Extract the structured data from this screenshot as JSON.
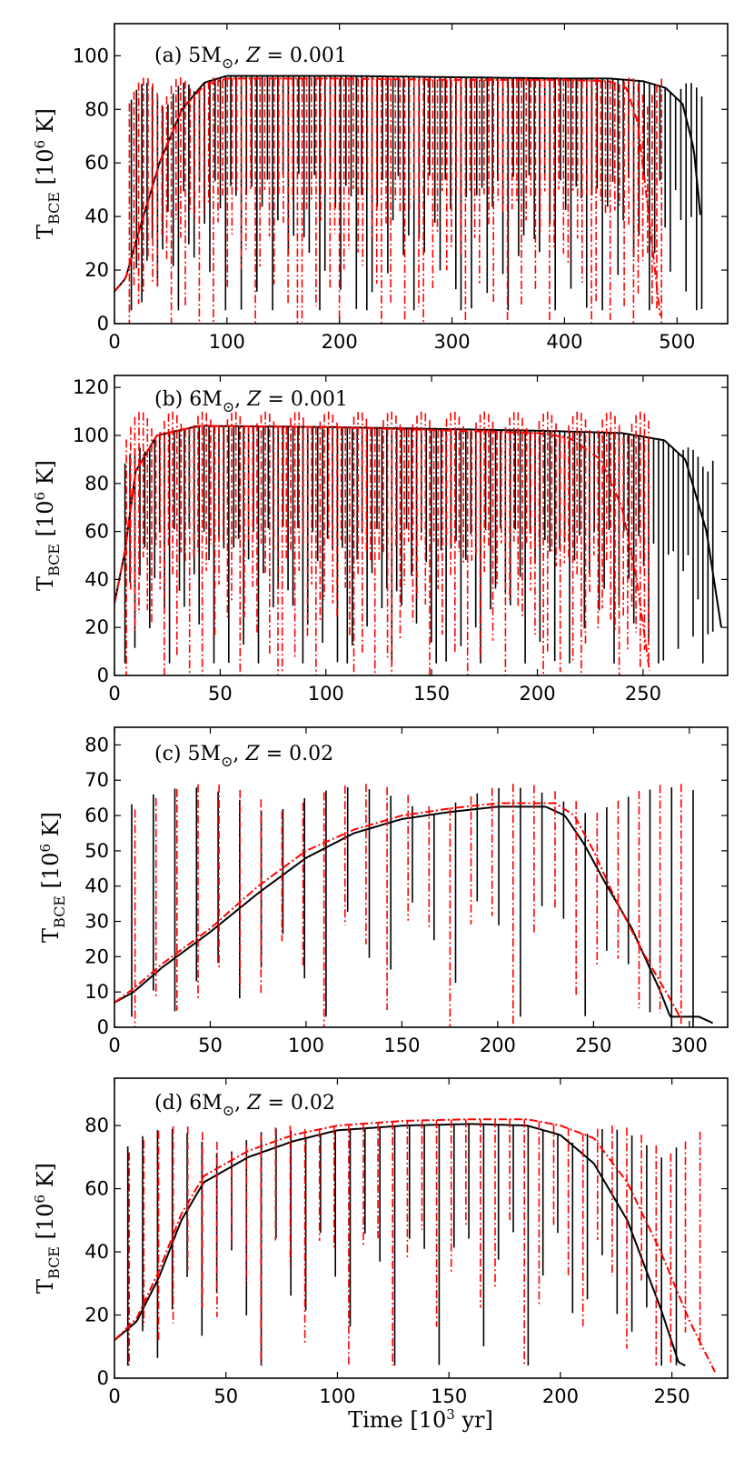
{
  "figure": {
    "xlabel": "Time [10",
    "xlabel_sup": "3",
    "xlabel_tail": " yr]"
  },
  "legend_colors": {
    "series_1": "#000000",
    "series_2": "#ff0000"
  },
  "chart_data": [
    {
      "type": "line",
      "title_prefix": "(a) 5M",
      "title_sun": "⊙",
      "title_sep": ", ",
      "title_z": "Z",
      "title_value": " = 0.001",
      "ylabel": "T",
      "ylabel_sub": "BCE",
      "ylabel_unit": " [10",
      "ylabel_unit_sup": "6",
      "ylabel_unit_tail": " K]",
      "xlim": [
        0,
        545
      ],
      "ylim": [
        0,
        112
      ],
      "xticks": [
        0,
        100,
        200,
        300,
        400,
        500
      ],
      "yticks": [
        0,
        20,
        40,
        60,
        80,
        100
      ],
      "series": [
        {
          "name": "black",
          "style": "solid",
          "pulses": 110,
          "t_start": 15,
          "t_end": 522,
          "peak": 92.5,
          "spike_top": 90,
          "dip_min": 5,
          "envelope": [
            [
              0,
              12
            ],
            [
              10,
              17
            ],
            [
              20,
              32
            ],
            [
              40,
              60
            ],
            [
              60,
              80
            ],
            [
              80,
              90
            ],
            [
              100,
              92.5
            ],
            [
              200,
              92.5
            ],
            [
              300,
              92
            ],
            [
              400,
              91.5
            ],
            [
              440,
              91.5
            ],
            [
              470,
              90.5
            ],
            [
              490,
              88
            ],
            [
              505,
              82
            ],
            [
              515,
              65
            ],
            [
              522,
              35
            ]
          ]
        },
        {
          "name": "red",
          "style": "dashdot",
          "pulses": 115,
          "t_start": 12,
          "t_end": 485,
          "peak": 91.5,
          "spike_top": 92,
          "dip_min": 0,
          "envelope": [
            [
              0,
              12
            ],
            [
              10,
              17
            ],
            [
              20,
              32
            ],
            [
              40,
              60
            ],
            [
              60,
              80
            ],
            [
              80,
              89
            ],
            [
              100,
              91.5
            ],
            [
              200,
              91.5
            ],
            [
              300,
              91
            ],
            [
              400,
              91
            ],
            [
              440,
              90.5
            ],
            [
              455,
              88
            ],
            [
              465,
              75
            ],
            [
              475,
              40
            ],
            [
              485,
              3
            ]
          ]
        }
      ]
    },
    {
      "type": "line",
      "title_prefix": "(b) 6M",
      "title_sun": "⊙",
      "title_sep": ", ",
      "title_z": "Z",
      "title_value": " = 0.001",
      "ylabel": "T",
      "ylabel_sub": "BCE",
      "ylabel_unit": " [10",
      "ylabel_unit_sup": "6",
      "ylabel_unit_tail": " K]",
      "xlim": [
        0,
        290
      ],
      "ylim": [
        0,
        125
      ],
      "xticks": [
        0,
        50,
        100,
        150,
        200,
        250
      ],
      "yticks": [
        0,
        20,
        40,
        60,
        80,
        100,
        120
      ],
      "series": [
        {
          "name": "black",
          "style": "solid",
          "pulses": 120,
          "t_start": 5,
          "t_end": 283,
          "peak": 104,
          "spike_top": 95,
          "dip_min": 5,
          "envelope": [
            [
              0,
              30
            ],
            [
              5,
              52
            ],
            [
              10,
              85
            ],
            [
              20,
              100
            ],
            [
              40,
              104
            ],
            [
              100,
              103.5
            ],
            [
              200,
              102
            ],
            [
              240,
              101
            ],
            [
              260,
              98
            ],
            [
              270,
              90
            ],
            [
              280,
              60
            ],
            [
              287,
              20
            ]
          ]
        },
        {
          "name": "red",
          "style": "dashdot",
          "pulses": 125,
          "t_start": 5,
          "t_end": 252,
          "peak": 104,
          "spike_top": 110,
          "dip_min": 0,
          "envelope": [
            [
              0,
              30
            ],
            [
              5,
              52
            ],
            [
              10,
              85
            ],
            [
              20,
              100
            ],
            [
              40,
              104
            ],
            [
              100,
              103.5
            ],
            [
              200,
              101
            ],
            [
              215,
              99
            ],
            [
              230,
              90
            ],
            [
              240,
              70
            ],
            [
              247,
              40
            ],
            [
              253,
              2
            ]
          ]
        }
      ]
    },
    {
      "type": "line",
      "title_prefix": "(c) 5M",
      "title_sun": "⊙",
      "title_sep": ", ",
      "title_z": "Z",
      "title_value": " = 0.02",
      "ylabel": "T",
      "ylabel_sub": "BCE",
      "ylabel_unit": " [10",
      "ylabel_unit_sup": "6",
      "ylabel_unit_tail": " K]",
      "xlim": [
        0,
        320
      ],
      "ylim": [
        0,
        85
      ],
      "xticks": [
        0,
        50,
        100,
        150,
        200,
        250,
        300
      ],
      "yticks": [
        0,
        10,
        20,
        30,
        40,
        50,
        60,
        70,
        80
      ],
      "series": [
        {
          "name": "black",
          "style": "solid",
          "pulses": 27,
          "t_start": 9,
          "t_end": 302,
          "peak": 63,
          "spike_top": 68,
          "dip_min": 3,
          "envelope": [
            [
              0,
              7
            ],
            [
              10,
              10
            ],
            [
              25,
              17
            ],
            [
              50,
              27
            ],
            [
              75,
              38
            ],
            [
              100,
              48
            ],
            [
              125,
              55
            ],
            [
              150,
              59
            ],
            [
              175,
              61
            ],
            [
              200,
              62.5
            ],
            [
              225,
              62.5
            ],
            [
              235,
              60
            ],
            [
              245,
              52
            ],
            [
              255,
              42
            ],
            [
              270,
              28
            ],
            [
              285,
              10
            ],
            [
              290,
              3
            ],
            [
              298,
              3
            ],
            [
              305,
              3
            ],
            [
              313,
              1
            ]
          ]
        },
        {
          "name": "red",
          "style": "dashdot",
          "pulses": 27,
          "t_start": 10,
          "t_end": 295,
          "peak": 63.5,
          "spike_top": 69,
          "dip_min": 0,
          "envelope": [
            [
              0,
              7
            ],
            [
              10,
              11
            ],
            [
              25,
              18
            ],
            [
              50,
              28
            ],
            [
              75,
              40
            ],
            [
              100,
              50
            ],
            [
              125,
              56
            ],
            [
              150,
              60
            ],
            [
              175,
              62
            ],
            [
              200,
              63.5
            ],
            [
              230,
              63.5
            ],
            [
              240,
              60
            ],
            [
              250,
              50
            ],
            [
              260,
              38
            ],
            [
              275,
              22
            ],
            [
              290,
              8
            ],
            [
              296,
              2
            ]
          ]
        }
      ]
    },
    {
      "type": "line",
      "title_prefix": "(d) 6M",
      "title_sun": "⊙",
      "title_sep": ", ",
      "title_z": "Z",
      "title_value": " = 0.02",
      "ylabel": "T",
      "ylabel_sub": "BCE",
      "ylabel_unit": " [10",
      "ylabel_unit_sup": "6",
      "ylabel_unit_tail": " K]",
      "xlim": [
        0,
        275
      ],
      "ylim": [
        0,
        95
      ],
      "xticks": [
        0,
        50,
        100,
        150,
        200,
        250
      ],
      "yticks": [
        0,
        20,
        40,
        60,
        80
      ],
      "series": [
        {
          "name": "black",
          "style": "solid",
          "pulses": 38,
          "t_start": 6,
          "t_end": 252,
          "peak": 81,
          "spike_top": 79,
          "dip_min": 4,
          "envelope": [
            [
              0,
              12
            ],
            [
              10,
              18
            ],
            [
              20,
              32
            ],
            [
              30,
              50
            ],
            [
              40,
              62
            ],
            [
              60,
              70
            ],
            [
              80,
              75
            ],
            [
              100,
              78.5
            ],
            [
              130,
              80
            ],
            [
              160,
              80.5
            ],
            [
              185,
              80
            ],
            [
              200,
              77
            ],
            [
              215,
              68
            ],
            [
              230,
              50
            ],
            [
              245,
              22
            ],
            [
              253,
              5
            ],
            [
              256,
              4
            ]
          ]
        },
        {
          "name": "red",
          "style": "dashdot",
          "pulses": 40,
          "t_start": 6,
          "t_end": 262,
          "peak": 82,
          "spike_top": 80,
          "dip_min": 4,
          "envelope": [
            [
              0,
              12
            ],
            [
              10,
              19
            ],
            [
              20,
              34
            ],
            [
              30,
              52
            ],
            [
              40,
              64
            ],
            [
              60,
              72
            ],
            [
              80,
              77
            ],
            [
              100,
              80
            ],
            [
              130,
              81.5
            ],
            [
              160,
              82
            ],
            [
              185,
              82
            ],
            [
              200,
              80
            ],
            [
              215,
              76
            ],
            [
              230,
              62
            ],
            [
              245,
              40
            ],
            [
              258,
              18
            ],
            [
              265,
              8
            ],
            [
              270,
              1
            ]
          ]
        }
      ]
    }
  ]
}
